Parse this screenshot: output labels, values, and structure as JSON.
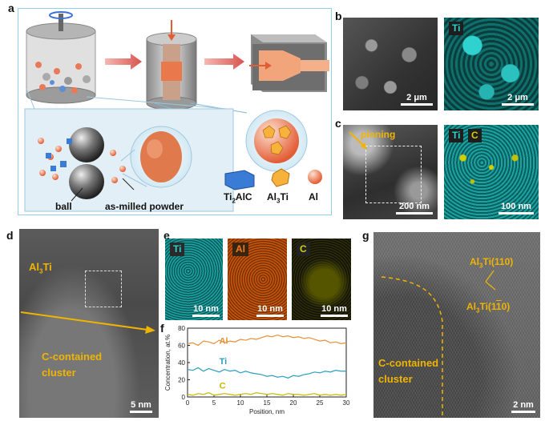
{
  "panels": {
    "a": "a",
    "b": "b",
    "c": "c",
    "d": "d",
    "e": "e",
    "f": "f",
    "g": "g"
  },
  "schematic": {
    "ball_label": "ball",
    "powder_label": "as-milled powder",
    "legend": {
      "ti2alc_main": "Ti",
      "ti2alc_sub": "2",
      "ti2alc_tail": "AlC",
      "al3ti_main": "Al",
      "al3ti_sub": "3",
      "al3ti_tail": "Ti",
      "al": "Al"
    }
  },
  "b": {
    "scale_left": "2 μm",
    "ti_tag": "Ti",
    "scale_right": "2 μm"
  },
  "c": {
    "pinning": "pinning",
    "scale_left": "200 nm",
    "ti_tag": "Ti",
    "c_tag": "C",
    "scale_right": "100 nm"
  },
  "d": {
    "phase_main": "Al",
    "phase_sub": "3",
    "phase_tail": "Ti",
    "cluster_line1": "C-contained",
    "cluster_line2": "cluster",
    "scale": "5 nm"
  },
  "e": {
    "ti_tag": "Ti",
    "al_tag": "Al",
    "c_tag": "C",
    "scale1": "10 nm",
    "scale2": "10 nm",
    "scale3": "10 nm"
  },
  "g": {
    "plane1_main": "Al",
    "plane1_sub": "3",
    "plane1_tail": "Ti(110)",
    "plane2_main": "Al",
    "plane2_sub": "3",
    "plane2_tail": "Ti(1",
    "plane2_bar": "1",
    "plane2_end": "0)",
    "cluster_line1": "C-contained",
    "cluster_line2": "cluster",
    "scale": "2 nm"
  },
  "chart_data": {
    "type": "line",
    "xlabel": "Position, nm",
    "ylabel": "Concentration, at.%",
    "xlim": [
      0,
      30
    ],
    "ylim": [
      0,
      80
    ],
    "xticks": [
      0,
      5,
      10,
      15,
      20,
      25,
      30
    ],
    "yticks": [
      0,
      20,
      40,
      60,
      80
    ],
    "series": [
      {
        "name": "Al",
        "color": "#e69138",
        "x": [
          0,
          1,
          2,
          3,
          4,
          5,
          6,
          7,
          8,
          9,
          10,
          11,
          12,
          13,
          14,
          15,
          16,
          17,
          18,
          19,
          20,
          21,
          22,
          23,
          24,
          25,
          26,
          27,
          28,
          29,
          30
        ],
        "y": [
          62,
          63,
          60,
          65,
          64,
          62,
          66,
          63,
          65,
          64,
          67,
          66,
          68,
          67,
          69,
          71,
          70,
          72,
          70,
          71,
          69,
          70,
          68,
          69,
          67,
          65,
          66,
          63,
          64,
          62,
          63
        ]
      },
      {
        "name": "Ti",
        "color": "#2a9fc0",
        "x": [
          0,
          1,
          2,
          3,
          4,
          5,
          6,
          7,
          8,
          9,
          10,
          11,
          12,
          13,
          14,
          15,
          16,
          17,
          18,
          19,
          20,
          21,
          22,
          23,
          24,
          25,
          26,
          27,
          28,
          29,
          30
        ],
        "y": [
          32,
          31,
          34,
          30,
          33,
          31,
          29,
          32,
          30,
          31,
          28,
          30,
          28,
          27,
          26,
          24,
          25,
          23,
          24,
          22,
          25,
          24,
          26,
          27,
          29,
          28,
          30,
          29,
          31,
          30,
          30
        ]
      },
      {
        "name": "C",
        "color": "#c9b800",
        "x": [
          0,
          1,
          2,
          3,
          4,
          5,
          6,
          7,
          8,
          9,
          10,
          11,
          12,
          13,
          14,
          15,
          16,
          17,
          18,
          19,
          20,
          21,
          22,
          23,
          24,
          25,
          26,
          27,
          28,
          29,
          30
        ],
        "y": [
          3,
          2,
          4,
          3,
          5,
          2,
          3,
          4,
          3,
          2,
          3,
          4,
          3,
          5,
          4,
          3,
          4,
          3,
          2,
          4,
          3,
          3,
          2,
          3,
          4,
          2,
          3,
          2,
          3,
          2,
          3
        ]
      }
    ]
  }
}
